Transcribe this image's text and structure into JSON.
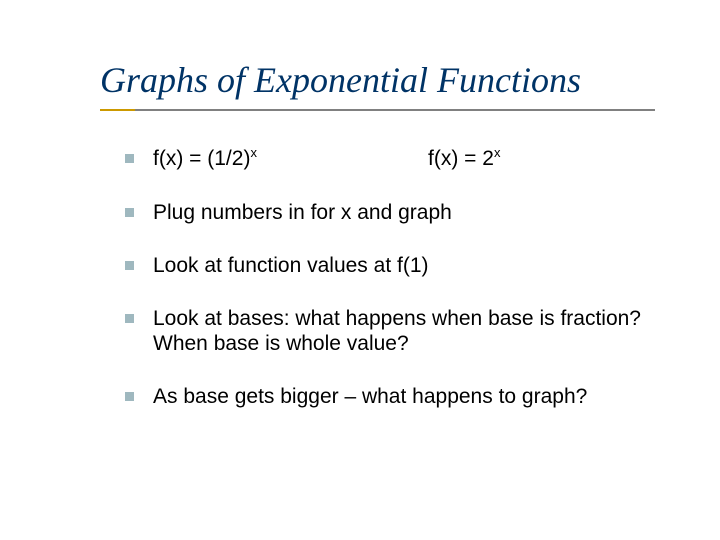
{
  "slide": {
    "title": "Graphs of Exponential Functions",
    "title_color": "#003366",
    "underline_accent_color": "#cc9900",
    "underline_main_color": "#808080",
    "bullet_marker_color": "#9fb8bf",
    "text_color": "#000000",
    "background_color": "#ffffff",
    "title_font": "Times New Roman, italic",
    "body_font": "Verdana",
    "title_fontsize": 36,
    "body_fontsize": 21,
    "bullets": [
      {
        "fn1_prefix": "f(x) = (1/2)",
        "fn1_exp": "x",
        "fn2_prefix": "f(x) = 2",
        "fn2_exp": "x"
      },
      {
        "text": "Plug numbers in for x and graph"
      },
      {
        "text": "Look at function values at f(1)"
      },
      {
        "text": "Look at bases:  what happens when base is fraction?  When base is whole value?"
      },
      {
        "text": "As base gets bigger – what happens to graph?"
      }
    ]
  }
}
